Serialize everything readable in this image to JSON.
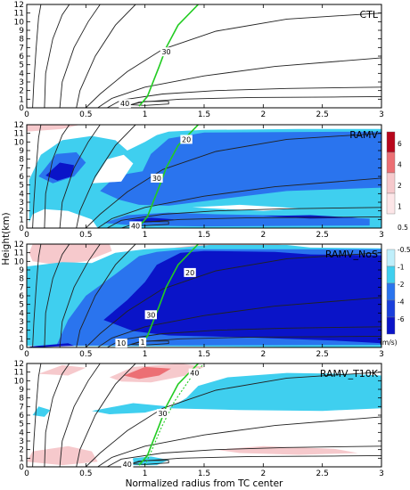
{
  "chart_data": {
    "type": "contour",
    "xlabel": "Normalized radius from TC center",
    "ylabel": "Height(km)",
    "xlim": [
      0,
      3
    ],
    "ylim": [
      0,
      12
    ],
    "xticks": [
      "0",
      "0.5",
      "1",
      "1.5",
      "2",
      "2.5",
      "3"
    ],
    "yticks": [
      "0",
      "1",
      "2",
      "3",
      "4",
      "5",
      "6",
      "7",
      "8",
      "9",
      "10",
      "11",
      "12"
    ],
    "panels": [
      {
        "title": "CTL",
        "contour_labels": [
          "30",
          "40"
        ]
      },
      {
        "title": "RAMV",
        "contour_labels": [
          "20",
          "30",
          "40"
        ],
        "colorbar": {
          "ticks": [
            "6",
            "4",
            "2",
            "1",
            "0.5"
          ]
        }
      },
      {
        "title": "RAMV_NoS",
        "contour_labels": [
          "20",
          "30",
          "10",
          "1"
        ],
        "colorbar": {
          "ticks": [
            "-0.5",
            "-1",
            "-2",
            "-4",
            "-6"
          ],
          "unit": "(m/s)"
        }
      },
      {
        "title": "RAMV_T10K",
        "contour_labels": [
          "40",
          "30",
          "40"
        ]
      }
    ],
    "colors": {
      "contour": "#222222",
      "rmw_line": "#22cc22",
      "neg_light": "#3fcfef",
      "neg_mid": "#2a74ee",
      "neg_dark": "#0a14c8",
      "pos_light": "#f6c9cc",
      "pos_mid": "#ec6f74",
      "pos_dark": "#b8071c"
    }
  }
}
